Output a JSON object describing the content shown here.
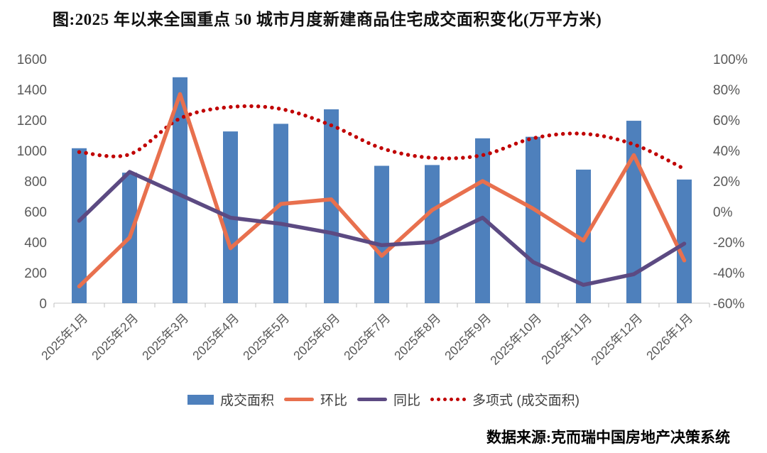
{
  "title": "图:2025 年以来全国重点 50 城市月度新建商品住宅成交面积变化(万平方米)",
  "source": "数据来源:克而瑞中国房地产决策系统",
  "colors": {
    "bar": "#4E80BC",
    "mom_line": "#E8704E",
    "yoy_line": "#5C4A82",
    "poly_line": "#C00000",
    "axis_text": "#595959",
    "axis_line": "#D9D9D9",
    "tick_mark": "#BFBFBF",
    "legend_text": "#3F3F3F"
  },
  "legend": [
    {
      "label": "成交面积",
      "swatch": "bar"
    },
    {
      "label": "环比",
      "swatch": "line"
    },
    {
      "label": "同比",
      "swatch": "line"
    },
    {
      "label": "多项式 (成交面积)",
      "swatch": "dots"
    }
  ],
  "chart_data": {
    "type": "bar",
    "subtype": "bar+line combo, dual axis",
    "title": "图:2025 年以来全国重点 50 城市月度新建商品住宅成交面积变化(万平方米)",
    "categories": [
      "2025年1月",
      "2025年2月",
      "2025年3月",
      "2025年4月",
      "2025年5月",
      "2025年6月",
      "2025年7月",
      "2025年8月",
      "2025年9月",
      "2025年10月",
      "2025年11月",
      "2025年12月",
      "2026年1月"
    ],
    "series": [
      {
        "name": "成交面积",
        "type": "bar",
        "axis": "left",
        "unit": "万平方米",
        "values": [
          1015,
          855,
          1480,
          1125,
          1175,
          1270,
          900,
          905,
          1080,
          1090,
          875,
          1195,
          810
        ]
      },
      {
        "name": "环比",
        "type": "line",
        "axis": "right",
        "unit": "%",
        "values": [
          -49,
          -17,
          77,
          -24,
          5,
          8,
          -29,
          1,
          20,
          2,
          -19,
          37,
          -32
        ]
      },
      {
        "name": "同比",
        "type": "line",
        "axis": "right",
        "unit": "%",
        "values": [
          -6,
          26,
          11,
          -4,
          -8,
          -14,
          -22,
          -20,
          -4,
          -33,
          -48,
          -41,
          -21
        ]
      },
      {
        "name": "多项式 (成交面积)",
        "type": "dotted-trend",
        "axis": "left",
        "unit": "万平方米",
        "values": [
          990,
          975,
          1210,
          1285,
          1272,
          1165,
          1015,
          952,
          970,
          1080,
          1110,
          1040,
          880
        ]
      }
    ],
    "left_axis": {
      "min": 0,
      "max": 1600,
      "step": 200,
      "tick_labels": [
        "0",
        "200",
        "400",
        "600",
        "800",
        "1000",
        "1200",
        "1400",
        "1600"
      ]
    },
    "right_axis": {
      "min": -60,
      "max": 100,
      "step": 20,
      "tick_labels": [
        "-60%",
        "-40%",
        "-20%",
        "0%",
        "20%",
        "40%",
        "60%",
        "80%",
        "100%"
      ]
    },
    "grid": false,
    "legend_position": "bottom"
  }
}
